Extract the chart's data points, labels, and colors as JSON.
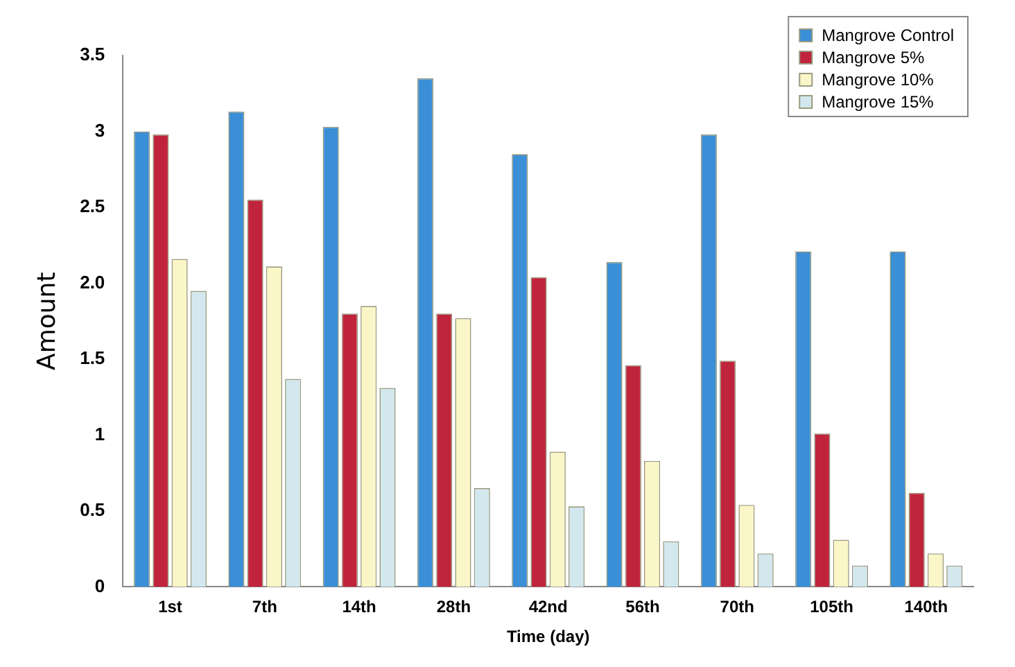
{
  "chart_data": {
    "type": "bar",
    "xlabel": "Time (day)",
    "ylabel": "Amount",
    "categories": [
      "1st",
      "7th",
      "14th",
      "28th",
      "42nd",
      "56th",
      "70th",
      "105th",
      "140th"
    ],
    "series": [
      {
        "name": "Mangrove Control",
        "color": "#3a8fd6",
        "values": [
          3.0,
          3.13,
          3.03,
          3.35,
          2.85,
          2.14,
          2.98,
          2.21,
          2.21
        ]
      },
      {
        "name": "Mangrove 5%",
        "color": "#c0243c",
        "values": [
          2.98,
          2.55,
          1.8,
          1.8,
          2.04,
          1.46,
          1.49,
          1.01,
          0.62
        ]
      },
      {
        "name": "Mangrove 10%",
        "color": "#fbf6c8",
        "values": [
          2.16,
          2.11,
          1.85,
          1.77,
          0.89,
          0.83,
          0.54,
          0.31,
          0.22
        ]
      },
      {
        "name": "Mangrove 15%",
        "color": "#d2e8ee",
        "values": [
          1.95,
          1.37,
          1.31,
          0.65,
          0.53,
          0.3,
          0.22,
          0.14,
          0.14
        ]
      }
    ],
    "ylim": [
      0,
      3.5
    ],
    "yticks": [
      0,
      0.5,
      1,
      1.5,
      {
        "value": 2,
        "label": "2.0"
      },
      2.5,
      3,
      3.5
    ],
    "grid": false,
    "legend": "top right"
  }
}
